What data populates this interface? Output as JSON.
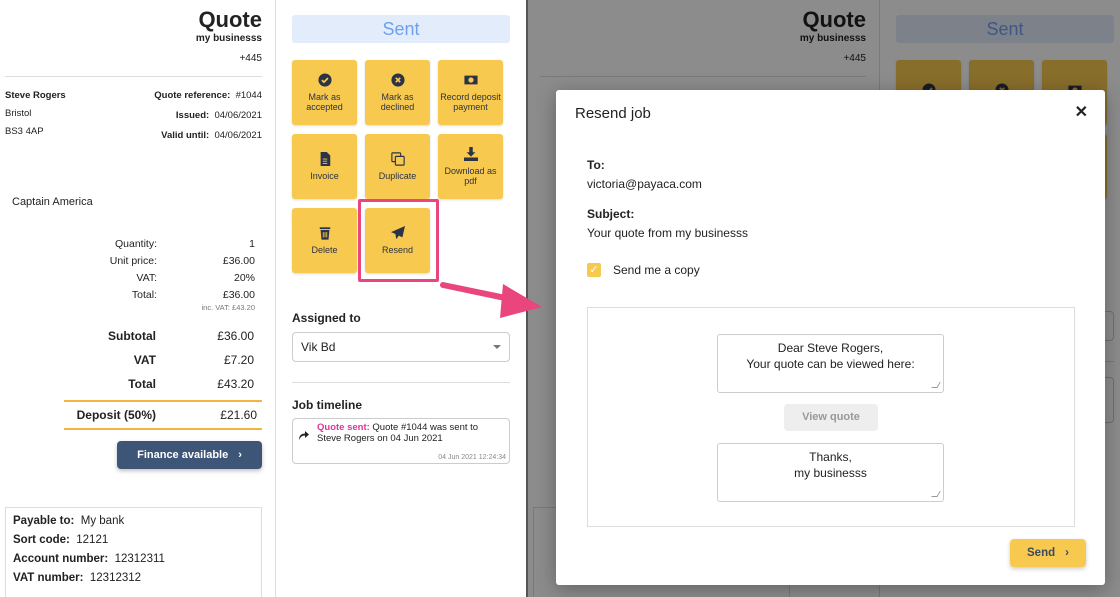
{
  "quote": {
    "title": "Quote",
    "business": "my businesss",
    "phone": "+445",
    "customer": {
      "name": "Steve Rogers",
      "city": "Bristol",
      "postcode": "BS3 4AP"
    },
    "reference_label": "Quote reference:",
    "reference": "#1044",
    "issued_label": "Issued:",
    "issued": "04/06/2021",
    "valid_label": "Valid until:",
    "valid": "04/06/2021",
    "item": {
      "name": "Captain America",
      "quantity_label": "Quantity:",
      "quantity": "1",
      "unit_price_label": "Unit price:",
      "unit_price": "£36.00",
      "vat_label": "VAT:",
      "vat": "20%",
      "total_label": "Total:",
      "total": "£36.00",
      "inc_vat": "inc. VAT: £43.20"
    },
    "totals": {
      "subtotal_label": "Subtotal",
      "subtotal": "£36.00",
      "vat_label": "VAT",
      "vat": "£7.20",
      "total_label": "Total",
      "total": "£43.20",
      "deposit_label": "Deposit (50%)",
      "deposit": "£21.60"
    },
    "finance_label": "Finance available",
    "bank": {
      "payable_label": "Payable to:",
      "payable": "My bank",
      "sort_label": "Sort code:",
      "sort": "12121",
      "account_label": "Account number:",
      "account": "12312311",
      "vat_label": "VAT number:",
      "vat": "12312312"
    }
  },
  "side": {
    "status": "Sent",
    "actions": [
      {
        "label": "Mark as accepted",
        "icon": "check-circle-icon"
      },
      {
        "label": "Mark as declined",
        "icon": "x-circle-icon"
      },
      {
        "label": "Record deposit payment",
        "icon": "money-icon"
      },
      {
        "label": "Invoice",
        "icon": "document-icon"
      },
      {
        "label": "Duplicate",
        "icon": "copy-icon"
      },
      {
        "label": "Download as pdf",
        "icon": "download-icon"
      },
      {
        "label": "Delete",
        "icon": "trash-icon"
      },
      {
        "label": "Resend",
        "icon": "paper-plane-icon"
      }
    ],
    "assigned_label": "Assigned to",
    "assigned_value": "Vik Bd",
    "timeline_label": "Job timeline",
    "timeline": {
      "event": "Quote sent:",
      "text": "Quote #1044 was sent to Steve Rogers on 04 Jun 2021",
      "timestamp": "04 Jun 2021 12:24:34"
    }
  },
  "modal": {
    "title": "Resend job",
    "to_label": "To:",
    "to": "victoria@payaca.com",
    "subject_label": "Subject:",
    "subject": "Your quote from my businesss",
    "copy_label": "Send me a copy",
    "copy_checked": true,
    "intro_line1": "Dear Steve Rogers,",
    "intro_line2": "Your quote can be viewed here:",
    "view_quote": "View quote",
    "outro_line1": "Thanks,",
    "outro_line2": "my businesss",
    "send": "Send"
  },
  "colors": {
    "accent": "#f7c94f",
    "finance": "#3d5577",
    "highlight": "#e8467c",
    "status": "#6ea0ee",
    "timeline_event": "#e0359a"
  }
}
